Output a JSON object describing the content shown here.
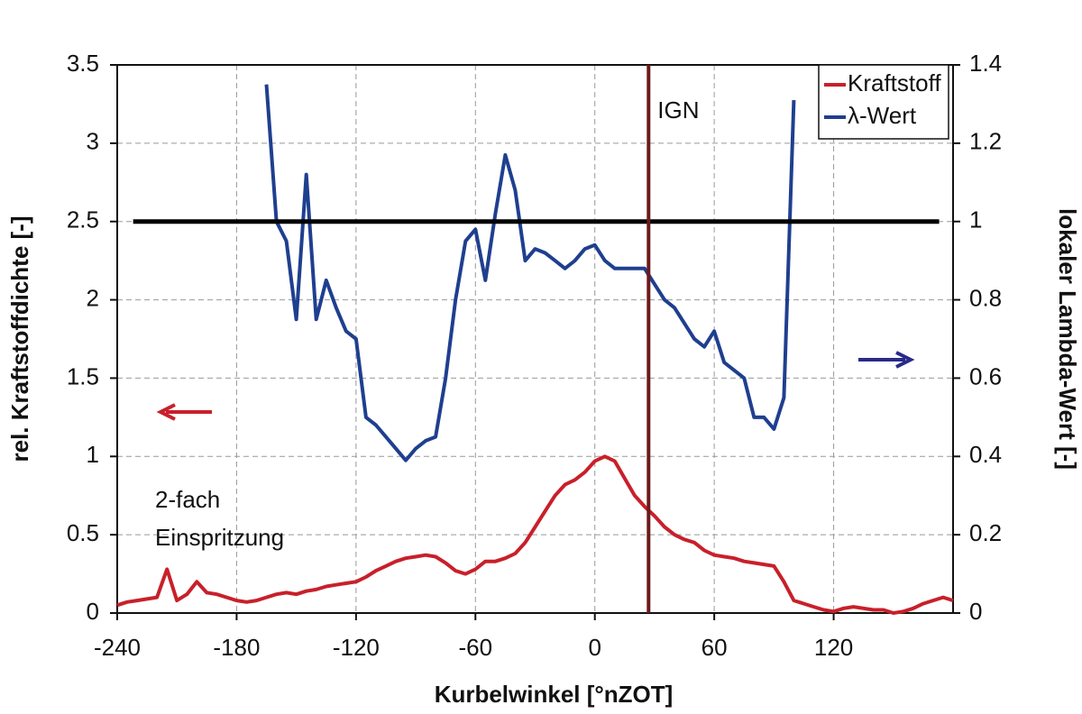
{
  "chart_data": {
    "type": "line",
    "x_label": "Kurbelwinkel [°nZOT]",
    "y_label": "rel. Kraftstoffdichte [-]",
    "y2_label": "lokaler Lambda-Wert [-]",
    "x": [
      -240,
      -235,
      -230,
      -225,
      -220,
      -215,
      -210,
      -205,
      -200,
      -195,
      -190,
      -185,
      -180,
      -175,
      -170,
      -165,
      -160,
      -155,
      -150,
      -145,
      -140,
      -135,
      -130,
      -125,
      -120,
      -115,
      -110,
      -105,
      -100,
      -95,
      -90,
      -85,
      -80,
      -75,
      -70,
      -65,
      -60,
      -55,
      -50,
      -45,
      -40,
      -35,
      -30,
      -25,
      -20,
      -15,
      -10,
      -5,
      0,
      5,
      10,
      15,
      20,
      25,
      30,
      35,
      40,
      45,
      50,
      55,
      60,
      65,
      70,
      75,
      80,
      85,
      90,
      95,
      100,
      105,
      110,
      115,
      120,
      125,
      130,
      135,
      140,
      145,
      150,
      155,
      160,
      165,
      170,
      175,
      180
    ],
    "series": [
      {
        "name": "Kraftstoff",
        "color": "#c8202a",
        "axis": "y",
        "values": [
          0.05,
          0.07,
          0.08,
          0.09,
          0.1,
          0.28,
          0.08,
          0.12,
          0.2,
          0.13,
          0.12,
          0.1,
          0.08,
          0.07,
          0.08,
          0.1,
          0.12,
          0.13,
          0.12,
          0.14,
          0.15,
          0.17,
          0.18,
          0.19,
          0.2,
          0.23,
          0.27,
          0.3,
          0.33,
          0.35,
          0.36,
          0.37,
          0.36,
          0.32,
          0.27,
          0.25,
          0.28,
          0.33,
          0.33,
          0.35,
          0.38,
          0.45,
          0.55,
          0.65,
          0.75,
          0.82,
          0.85,
          0.9,
          0.97,
          1.0,
          0.97,
          0.86,
          0.75,
          0.68,
          0.62,
          0.55,
          0.5,
          0.47,
          0.45,
          0.4,
          0.37,
          0.36,
          0.35,
          0.33,
          0.32,
          0.31,
          0.3,
          0.2,
          0.08,
          0.06,
          0.04,
          0.02,
          0.01,
          0.03,
          0.04,
          0.03,
          0.02,
          0.02,
          0.0,
          0.01,
          0.03,
          0.06,
          0.08,
          0.1,
          0.08
        ]
      },
      {
        "name": "λ-Wert",
        "color": "#1f3f8f",
        "axis": "y2",
        "values": [
          null,
          null,
          null,
          null,
          null,
          null,
          null,
          null,
          null,
          null,
          null,
          null,
          null,
          null,
          null,
          1.35,
          1.0,
          0.95,
          0.75,
          1.12,
          0.75,
          0.85,
          0.78,
          0.72,
          0.7,
          0.5,
          0.48,
          0.45,
          0.42,
          0.39,
          0.42,
          0.44,
          0.45,
          0.6,
          0.8,
          0.95,
          0.98,
          0.85,
          1.02,
          1.17,
          1.08,
          0.9,
          0.93,
          0.92,
          0.9,
          0.88,
          0.9,
          0.93,
          0.94,
          0.9,
          0.88,
          0.88,
          0.88,
          0.88,
          0.84,
          0.8,
          0.78,
          0.74,
          0.7,
          0.68,
          0.72,
          0.64,
          0.62,
          0.6,
          0.5,
          0.5,
          0.47,
          0.55,
          1.31,
          null,
          null,
          null,
          null,
          null,
          null,
          null,
          null,
          null,
          null,
          null,
          null,
          null,
          null,
          null,
          null
        ]
      }
    ],
    "xlim": [
      -240,
      180
    ],
    "xticks": [
      -240,
      -180,
      -120,
      -60,
      0,
      60,
      120
    ],
    "ylim": [
      0,
      3.5
    ],
    "yticks": [
      0,
      0.5,
      1,
      1.5,
      2,
      2.5,
      3,
      3.5
    ],
    "y2lim": [
      0,
      1.4
    ],
    "y2ticks": [
      0,
      0.2,
      0.4,
      0.6,
      0.8,
      1,
      1.2,
      1.4
    ],
    "grid": true,
    "legend": "top-right",
    "reference_line": {
      "axis": "y2",
      "value": 1,
      "x": [
        -232,
        173
      ],
      "color": "#000000"
    },
    "vline": {
      "x": 27,
      "label": "IGN",
      "color": "#6b1a1a"
    },
    "annotation": [
      "2-fach",
      "Einspritzung"
    ]
  }
}
